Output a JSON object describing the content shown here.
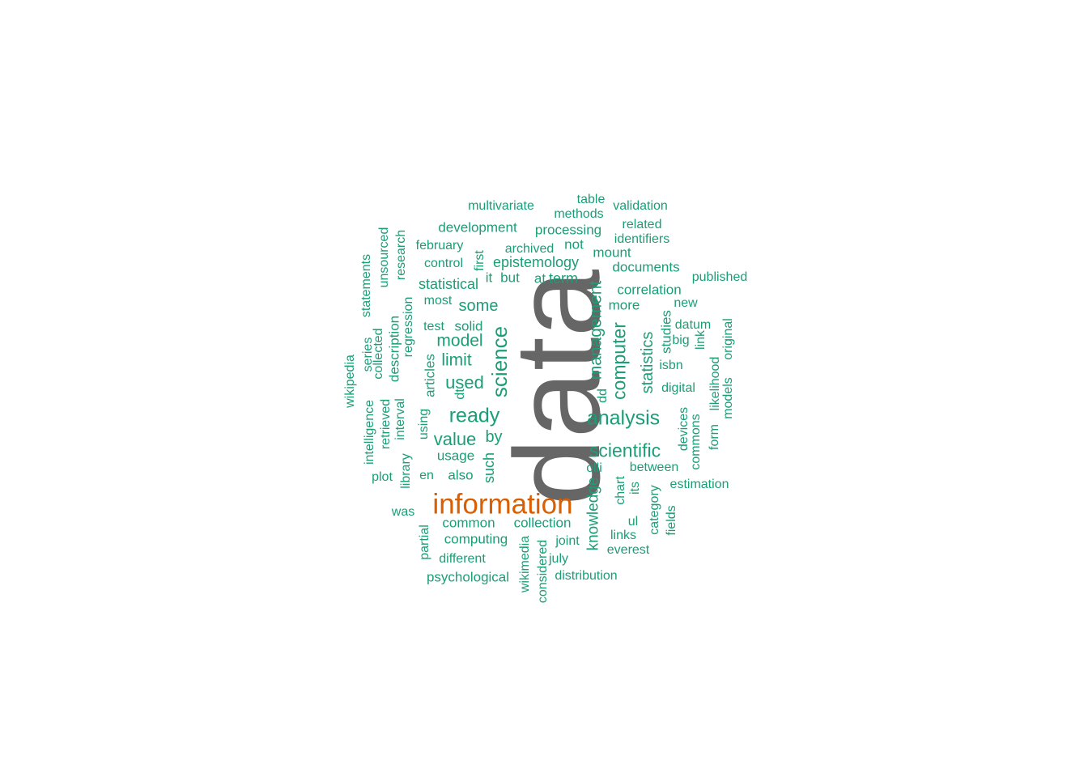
{
  "colors": {
    "primary": "#666666",
    "secondary": "#d95f02",
    "default": "#1b9e77"
  },
  "words": [
    {
      "text": "data",
      "color": "primary"
    },
    {
      "text": "information",
      "color": "secondary"
    },
    {
      "text": "analysis"
    },
    {
      "text": "ready"
    },
    {
      "text": "scientific"
    },
    {
      "text": "value"
    },
    {
      "text": "science"
    },
    {
      "text": "computer"
    },
    {
      "text": "management"
    },
    {
      "text": "used"
    },
    {
      "text": "model"
    },
    {
      "text": "limit"
    },
    {
      "text": "some"
    },
    {
      "text": "statistics"
    },
    {
      "text": "statistical"
    },
    {
      "text": "knowledge"
    },
    {
      "text": "epistemology"
    },
    {
      "text": "by"
    },
    {
      "text": "such"
    },
    {
      "text": "multivariate"
    },
    {
      "text": "table"
    },
    {
      "text": "validation"
    },
    {
      "text": "methods"
    },
    {
      "text": "related"
    },
    {
      "text": "development"
    },
    {
      "text": "processing"
    },
    {
      "text": "identifiers"
    },
    {
      "text": "february"
    },
    {
      "text": "archived"
    },
    {
      "text": "not"
    },
    {
      "text": "mount"
    },
    {
      "text": "control"
    },
    {
      "text": "documents"
    },
    {
      "text": "published"
    },
    {
      "text": "it"
    },
    {
      "text": "but"
    },
    {
      "text": "at"
    },
    {
      "text": "term"
    },
    {
      "text": "correlation"
    },
    {
      "text": "most"
    },
    {
      "text": "more"
    },
    {
      "text": "new"
    },
    {
      "text": "test"
    },
    {
      "text": "solid"
    },
    {
      "text": "datum"
    },
    {
      "text": "big"
    },
    {
      "text": "isbn"
    },
    {
      "text": "digital"
    },
    {
      "text": "dd"
    },
    {
      "text": "usage"
    },
    {
      "text": "between"
    },
    {
      "text": "en"
    },
    {
      "text": "also"
    },
    {
      "text": "olli"
    },
    {
      "text": "estimation"
    },
    {
      "text": "plot"
    },
    {
      "text": "was"
    },
    {
      "text": "common"
    },
    {
      "text": "collection"
    },
    {
      "text": "computing"
    },
    {
      "text": "joint"
    },
    {
      "text": "links"
    },
    {
      "text": "everest"
    },
    {
      "text": "ul"
    },
    {
      "text": "different"
    },
    {
      "text": "july"
    },
    {
      "text": "psychological"
    },
    {
      "text": "distribution"
    },
    {
      "text": "first"
    },
    {
      "text": "research"
    },
    {
      "text": "unsourced"
    },
    {
      "text": "statements"
    },
    {
      "text": "series"
    },
    {
      "text": "collected"
    },
    {
      "text": "description"
    },
    {
      "text": "regression"
    },
    {
      "text": "wikipedia"
    },
    {
      "text": "intelligence"
    },
    {
      "text": "retrieved"
    },
    {
      "text": "interval"
    },
    {
      "text": "articles"
    },
    {
      "text": "dt"
    },
    {
      "text": "using"
    },
    {
      "text": "library"
    },
    {
      "text": "studies"
    },
    {
      "text": "link"
    },
    {
      "text": "original"
    },
    {
      "text": "likelihood"
    },
    {
      "text": "models"
    },
    {
      "text": "form"
    },
    {
      "text": "devices"
    },
    {
      "text": "commons"
    },
    {
      "text": "chart"
    },
    {
      "text": "its"
    },
    {
      "text": "category"
    },
    {
      "text": "fields"
    },
    {
      "text": "partial"
    },
    {
      "text": "wikimedia"
    },
    {
      "text": "considered"
    }
  ]
}
